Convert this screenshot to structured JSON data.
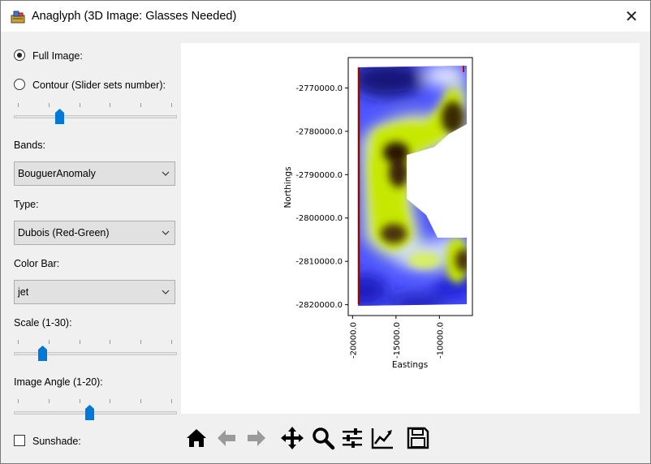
{
  "window": {
    "title": "Anaglyph (3D Image: Glasses Needed)"
  },
  "controls": {
    "full_image_label": "Full Image:",
    "contour_label": "Contour (Slider sets number):",
    "contour_slider_value": 0.27,
    "bands_label": "Bands:",
    "bands_value": "BouguerAnomaly",
    "type_label": "Type:",
    "type_value": "Dubois (Red-Green)",
    "colorbar_label": "Color Bar:",
    "colorbar_value": "jet",
    "scale_label": "Scale (1-30):",
    "scale_slider_value": 0.16,
    "angle_label": "Image Angle (1-20):",
    "angle_slider_value": 0.47,
    "sunshade_label": "Sunshade:"
  },
  "chart_data": {
    "type": "heatmap",
    "xlabel": "Eastings",
    "ylabel": "Northings",
    "x_ticks": [
      -20000.0,
      -15000.0,
      -10000.0
    ],
    "x_tick_labels": [
      "-20000.0",
      "-15000.0",
      "-10000.0"
    ],
    "y_ticks": [
      -2770000.0,
      -2780000.0,
      -2790000.0,
      -2800000.0,
      -2810000.0,
      -2820000.0
    ],
    "y_tick_labels": [
      "-2770000.0",
      "-2780000.0",
      "-2790000.0",
      "-2800000.0",
      "-2810000.0",
      "-2820000.0"
    ],
    "xlim": [
      -20500.0,
      -6200.0
    ],
    "ylim": [
      -2822500.0,
      -2763000.0
    ],
    "colormap": "jet anaglyph (red-green)"
  },
  "toolbar": {
    "icons": [
      "home-icon",
      "back-arrow-icon",
      "forward-arrow-icon",
      "pan-icon",
      "zoom-icon",
      "configure-subplots-icon",
      "edit-axis-icon",
      "save-icon"
    ]
  },
  "colors": {
    "accent": "#0078d7",
    "plot_bg": "#ffffff",
    "window_bg": "#f0f0f0"
  }
}
